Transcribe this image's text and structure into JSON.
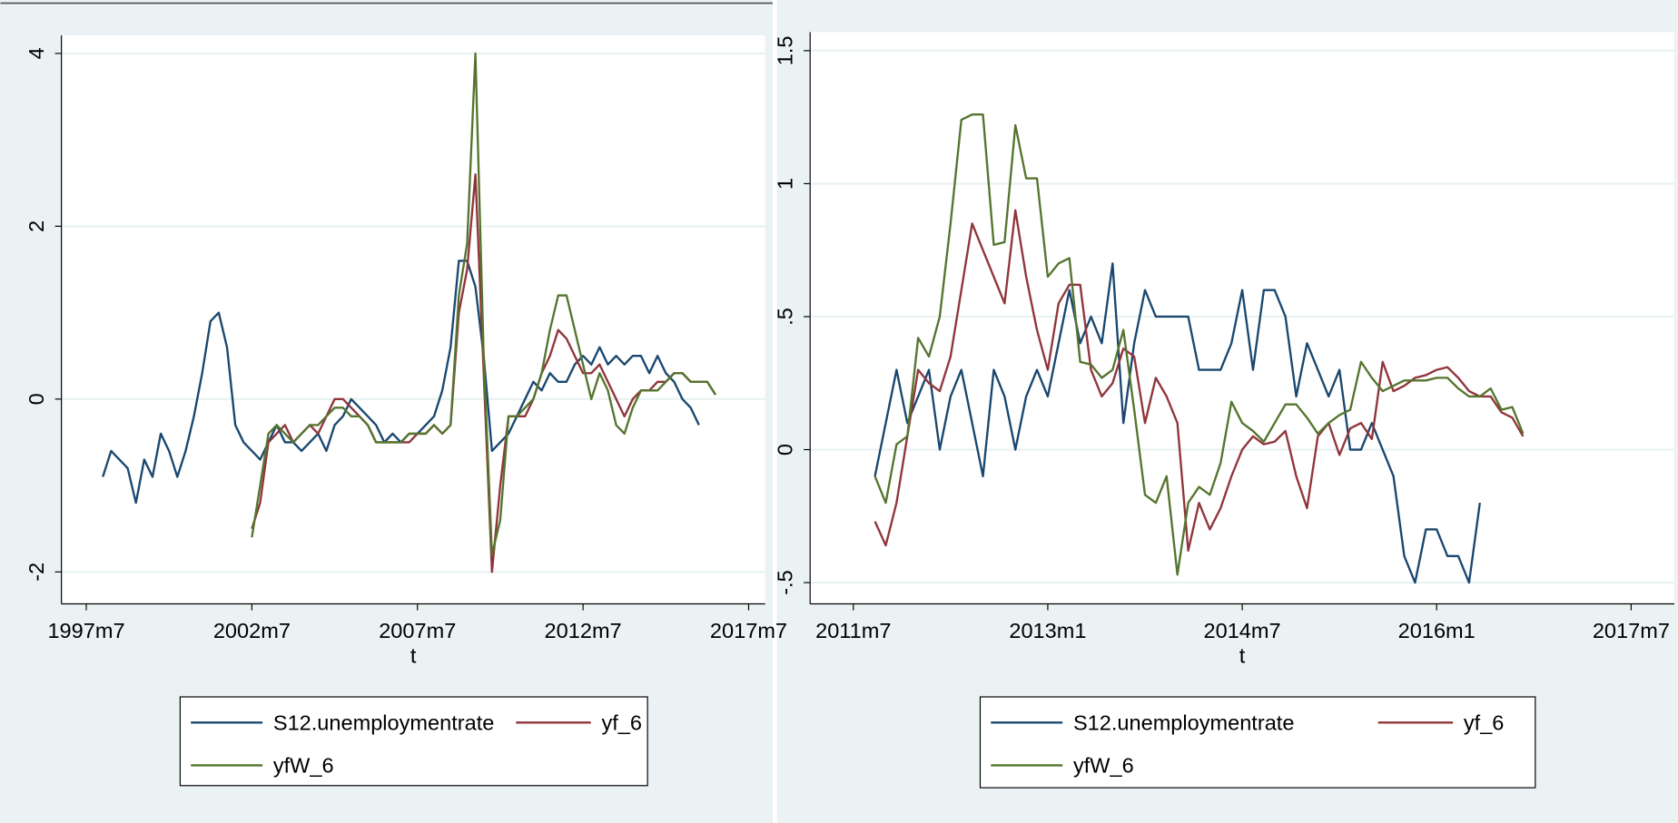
{
  "chart_data": [
    {
      "type": "line",
      "x_label": "t",
      "grid": true,
      "xlim": [
        "1996m10",
        "2018m1"
      ],
      "xticks": [
        "1997m7",
        "2002m7",
        "2007m7",
        "2012m7",
        "2017m7"
      ],
      "ylim": [
        -2.37,
        4.21
      ],
      "yticks": [
        -2,
        0,
        2,
        4
      ],
      "x": [
        "1998m1",
        "1998m4",
        "1998m7",
        "1998m10",
        "1999m1",
        "1999m4",
        "1999m7",
        "1999m10",
        "2000m1",
        "2000m4",
        "2000m7",
        "2000m10",
        "2001m1",
        "2001m4",
        "2001m7",
        "2001m10",
        "2002m1",
        "2002m4",
        "2002m7",
        "2002m10",
        "2003m1",
        "2003m4",
        "2003m7",
        "2003m10",
        "2004m1",
        "2004m4",
        "2004m7",
        "2004m10",
        "2005m1",
        "2005m4",
        "2005m7",
        "2005m10",
        "2006m1",
        "2006m4",
        "2006m7",
        "2006m10",
        "2007m1",
        "2007m4",
        "2007m7",
        "2007m10",
        "2008m1",
        "2008m4",
        "2008m7",
        "2008m10",
        "2009m1",
        "2009m4",
        "2009m7",
        "2009m10",
        "2010m1",
        "2010m4",
        "2010m7",
        "2010m10",
        "2011m1",
        "2011m4",
        "2011m7",
        "2011m10",
        "2012m1",
        "2012m4",
        "2012m7",
        "2012m10",
        "2013m1",
        "2013m4",
        "2013m7",
        "2013m10",
        "2014m1",
        "2014m4",
        "2014m7",
        "2014m10",
        "2015m1",
        "2015m4",
        "2015m7",
        "2015m10",
        "2016m1",
        "2016m4",
        "2016m7"
      ],
      "series": [
        {
          "name": "S12.unemploymentrate",
          "color": "#1a476f",
          "values": [
            -0.9,
            -0.6,
            -0.7,
            -0.8,
            -1.2,
            -0.7,
            -0.9,
            -0.4,
            -0.6,
            -0.9,
            -0.6,
            -0.2,
            0.3,
            0.9,
            1.0,
            0.6,
            -0.3,
            -0.5,
            -0.6,
            -0.7,
            -0.5,
            -0.3,
            -0.5,
            -0.5,
            -0.6,
            -0.5,
            -0.4,
            -0.6,
            -0.3,
            -0.2,
            0.0,
            -0.1,
            -0.2,
            -0.3,
            -0.5,
            -0.4,
            -0.5,
            -0.4,
            -0.4,
            -0.3,
            -0.2,
            0.1,
            0.6,
            1.6,
            1.6,
            1.3,
            0.5,
            -0.6,
            -0.5,
            -0.4,
            -0.2,
            0.0,
            0.2,
            0.1,
            0.3,
            0.2,
            0.2,
            0.4,
            0.5,
            0.4,
            0.6,
            0.4,
            0.5,
            0.4,
            0.5,
            0.5,
            0.3,
            0.5,
            0.3,
            0.2,
            0.0,
            -0.1,
            -0.3,
            null,
            null
          ]
        },
        {
          "name": "yf_6",
          "color": "#90353b",
          "values": [
            null,
            null,
            null,
            null,
            null,
            null,
            null,
            null,
            null,
            null,
            null,
            null,
            null,
            null,
            null,
            null,
            null,
            null,
            -1.5,
            -1.2,
            -0.5,
            -0.4,
            -0.3,
            -0.5,
            -0.4,
            -0.3,
            -0.4,
            -0.2,
            0.0,
            0.0,
            -0.1,
            -0.2,
            -0.3,
            -0.5,
            -0.5,
            -0.5,
            -0.5,
            -0.5,
            -0.4,
            -0.4,
            -0.3,
            -0.4,
            -0.3,
            1.0,
            1.5,
            2.6,
            0.3,
            -2.0,
            -1.0,
            -0.2,
            -0.2,
            -0.2,
            0.0,
            0.3,
            0.5,
            0.8,
            0.7,
            0.5,
            0.3,
            0.3,
            0.4,
            0.2,
            0.0,
            -0.2,
            0.0,
            0.1,
            0.1,
            0.2,
            0.2,
            0.3,
            0.3,
            0.2,
            0.2,
            0.2,
            0.05
          ]
        },
        {
          "name": "yfW_6",
          "color": "#55752f",
          "values": [
            null,
            null,
            null,
            null,
            null,
            null,
            null,
            null,
            null,
            null,
            null,
            null,
            null,
            null,
            null,
            null,
            null,
            null,
            -1.6,
            -1.0,
            -0.4,
            -0.3,
            -0.4,
            -0.5,
            -0.4,
            -0.3,
            -0.3,
            -0.2,
            -0.1,
            -0.1,
            -0.2,
            -0.2,
            -0.3,
            -0.5,
            -0.5,
            -0.5,
            -0.5,
            -0.4,
            -0.4,
            -0.4,
            -0.3,
            -0.4,
            -0.3,
            1.2,
            1.8,
            4.0,
            0.5,
            -1.8,
            -1.4,
            -0.2,
            -0.2,
            -0.1,
            0.0,
            0.3,
            0.8,
            1.2,
            1.2,
            0.8,
            0.4,
            0.0,
            0.3,
            0.1,
            -0.3,
            -0.4,
            -0.1,
            0.1,
            0.1,
            0.1,
            0.2,
            0.3,
            0.3,
            0.2,
            0.2,
            0.2,
            0.05
          ]
        }
      ]
    },
    {
      "type": "line",
      "x_label": "t",
      "grid": true,
      "xlim": [
        "2011m3",
        "2017m11"
      ],
      "xticks": [
        "2011m7",
        "2013m1",
        "2014m7",
        "2016m1",
        "2017m7"
      ],
      "ylim": [
        -0.58,
        1.57
      ],
      "yticks": [
        {
          "value": -0.5,
          "label": "-.5"
        },
        0,
        {
          "value": 0.5,
          "label": ".5"
        },
        1,
        1.5
      ],
      "x": [
        "2011m9",
        "2011m10",
        "2011m11",
        "2011m12",
        "2012m1",
        "2012m2",
        "2012m3",
        "2012m4",
        "2012m5",
        "2012m6",
        "2012m7",
        "2012m8",
        "2012m9",
        "2012m10",
        "2012m11",
        "2012m12",
        "2013m1",
        "2013m2",
        "2013m3",
        "2013m4",
        "2013m5",
        "2013m6",
        "2013m7",
        "2013m8",
        "2013m9",
        "2013m10",
        "2013m11",
        "2013m12",
        "2014m1",
        "2014m2",
        "2014m3",
        "2014m4",
        "2014m5",
        "2014m6",
        "2014m7",
        "2014m8",
        "2014m9",
        "2014m10",
        "2014m11",
        "2014m12",
        "2015m1",
        "2015m2",
        "2015m3",
        "2015m4",
        "2015m5",
        "2015m6",
        "2015m7",
        "2015m8",
        "2015m9",
        "2015m10",
        "2015m11",
        "2015m12",
        "2016m1",
        "2016m2",
        "2016m3",
        "2016m4",
        "2016m5",
        "2016m6",
        "2016m7",
        "2016m8",
        "2016m9"
      ],
      "series": [
        {
          "name": "S12.unemploymentrate",
          "color": "#1a476f",
          "values": [
            -0.1,
            0.1,
            0.3,
            0.1,
            0.2,
            0.3,
            0.0,
            0.2,
            0.3,
            0.1,
            -0.1,
            0.3,
            0.2,
            0.0,
            0.2,
            0.3,
            0.2,
            0.4,
            0.6,
            0.4,
            0.5,
            0.4,
            0.7,
            0.1,
            0.4,
            0.6,
            0.5,
            0.5,
            0.5,
            0.5,
            0.3,
            0.3,
            0.3,
            0.4,
            0.6,
            0.3,
            0.6,
            0.6,
            0.5,
            0.2,
            0.4,
            0.3,
            0.2,
            0.3,
            0.0,
            0.0,
            0.1,
            0.0,
            -0.1,
            -0.4,
            -0.5,
            -0.3,
            -0.3,
            -0.4,
            -0.4,
            -0.5,
            -0.2,
            null,
            null,
            null,
            null
          ]
        },
        {
          "name": "yf_6",
          "color": "#90353b",
          "values": [
            -0.27,
            -0.36,
            -0.2,
            0.05,
            0.3,
            0.25,
            0.22,
            0.35,
            0.6,
            0.85,
            0.75,
            0.65,
            0.55,
            0.9,
            0.65,
            0.45,
            0.3,
            0.55,
            0.62,
            0.62,
            0.3,
            0.2,
            0.25,
            0.38,
            0.35,
            0.1,
            0.27,
            0.2,
            0.1,
            -0.38,
            -0.2,
            -0.3,
            -0.22,
            -0.1,
            0.0,
            0.05,
            0.02,
            0.03,
            0.07,
            -0.1,
            -0.22,
            0.05,
            0.1,
            -0.02,
            0.08,
            0.1,
            0.04,
            0.33,
            0.22,
            0.24,
            0.27,
            0.28,
            0.3,
            0.31,
            0.27,
            0.22,
            0.2,
            0.2,
            0.14,
            0.12,
            0.05
          ]
        },
        {
          "name": "yfW_6",
          "color": "#55752f",
          "values": [
            -0.1,
            -0.2,
            0.02,
            0.05,
            0.42,
            0.35,
            0.5,
            0.85,
            1.24,
            1.26,
            1.26,
            0.77,
            0.78,
            1.22,
            1.02,
            1.02,
            0.65,
            0.7,
            0.72,
            0.33,
            0.32,
            0.27,
            0.3,
            0.45,
            0.15,
            -0.17,
            -0.2,
            -0.1,
            -0.47,
            -0.2,
            -0.14,
            -0.17,
            -0.05,
            0.18,
            0.1,
            0.07,
            0.03,
            0.1,
            0.17,
            0.17,
            0.12,
            0.06,
            0.1,
            0.13,
            0.15,
            0.33,
            0.27,
            0.22,
            0.24,
            0.26,
            0.26,
            0.26,
            0.27,
            0.27,
            0.23,
            0.2,
            0.2,
            0.23,
            0.15,
            0.16,
            0.06
          ]
        }
      ]
    }
  ]
}
